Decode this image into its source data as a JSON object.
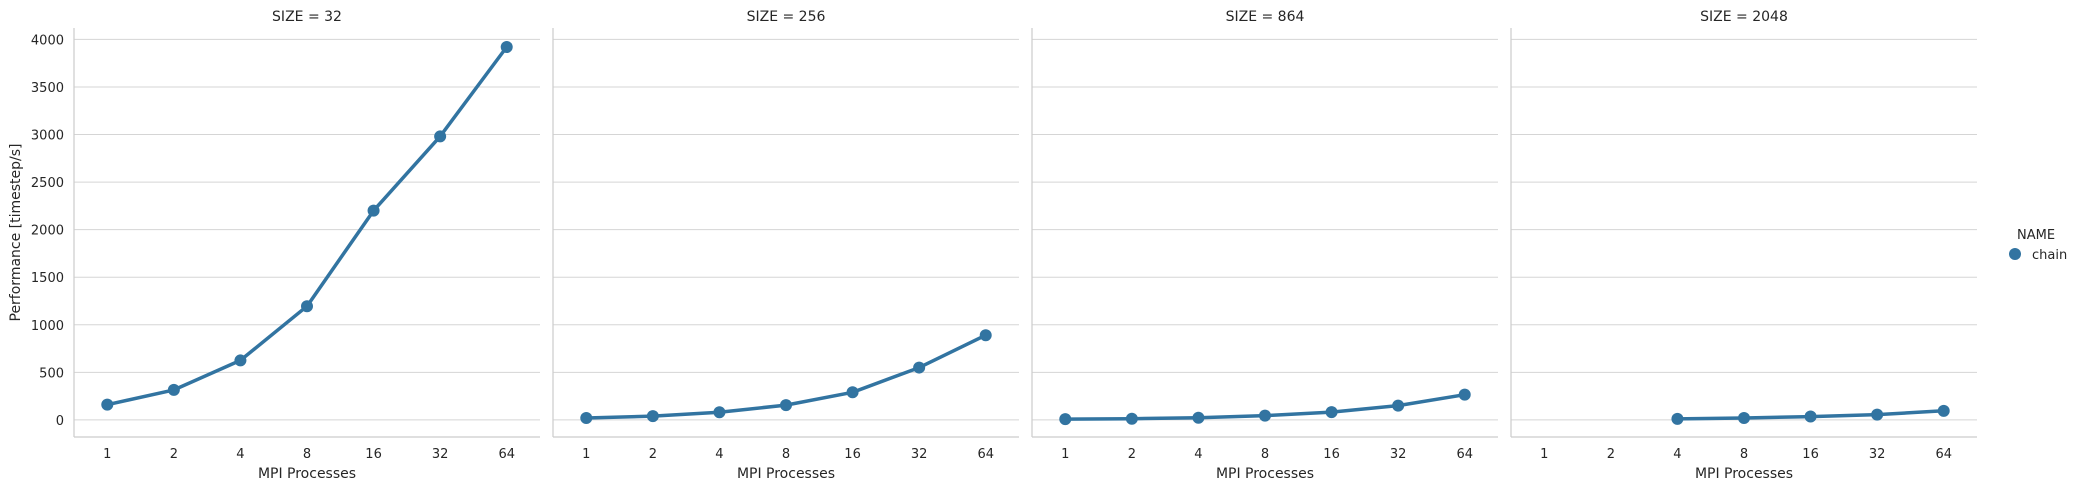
{
  "chart_data": {
    "type": "line",
    "ylabel": "Performance [timestep/s]",
    "xlabel": "MPI Processes",
    "categories": [
      "1",
      "2",
      "4",
      "8",
      "16",
      "32",
      "64"
    ],
    "ylim": [
      -180,
      4120
    ],
    "yticks": [
      0,
      500,
      1000,
      1500,
      2000,
      2500,
      3000,
      3500,
      4000
    ],
    "grid": "horizontal",
    "color": "#3274a1",
    "legend": {
      "title": "NAME",
      "placement": "right",
      "entries": [
        "chain"
      ]
    },
    "panels": [
      {
        "title": "SIZE = 32",
        "series": [
          {
            "name": "chain",
            "values": [
              160,
              315,
              625,
              1195,
              2200,
              2980,
              3920
            ]
          }
        ]
      },
      {
        "title": "SIZE = 256",
        "series": [
          {
            "name": "chain",
            "values": [
              20,
              40,
              80,
              155,
              290,
              550,
              890
            ]
          }
        ]
      },
      {
        "title": "SIZE = 864",
        "series": [
          {
            "name": "chain",
            "values": [
              8,
              12,
              22,
              45,
              82,
              150,
              265
            ]
          }
        ]
      },
      {
        "title": "SIZE = 2048",
        "series": [
          {
            "name": "chain",
            "values": [
              null,
              null,
              10,
              20,
              35,
              55,
              95
            ]
          }
        ]
      }
    ]
  }
}
